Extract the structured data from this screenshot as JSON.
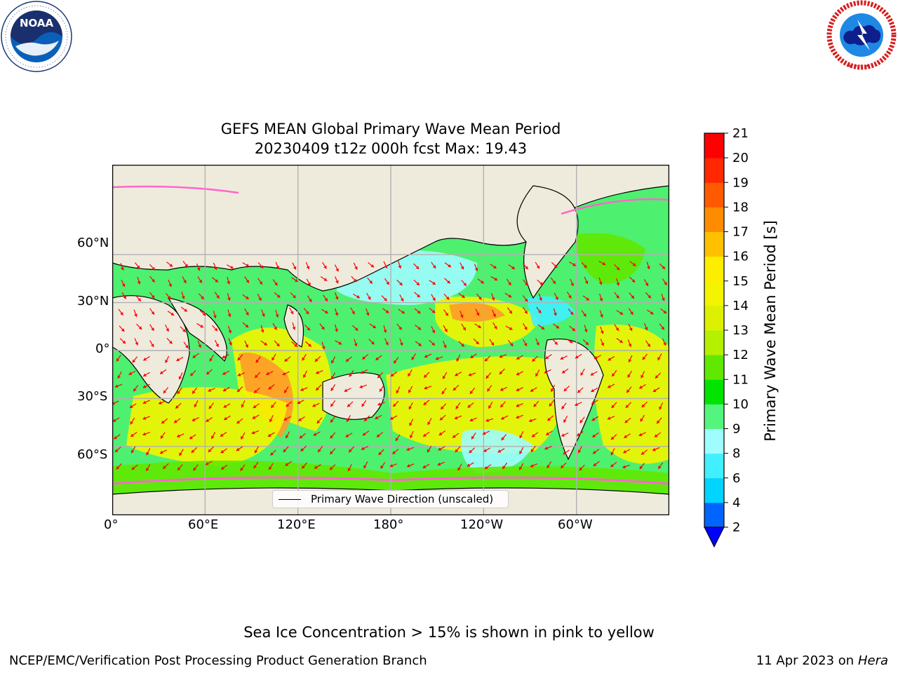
{
  "header": {
    "left_logo": {
      "name": "noaa-logo",
      "text": "NOAA",
      "ring_text": "NATIONAL OCEANIC AND ATMOSPHERIC ADMINISTRATION · U.S. DEPARTMENT OF COMMERCE"
    },
    "right_logo": {
      "name": "nws-logo",
      "ring_text": "NATIONAL WEATHER SERVICE"
    }
  },
  "title": {
    "line1": "GEFS MEAN Global Primary Wave Mean Period",
    "line2": "20230409 t12z 000h fcst   Max: 19.43"
  },
  "map": {
    "projection": "plate-carree",
    "central_longitude": 180,
    "max_value": 19.43,
    "x_ticks": [
      "0°",
      "60°E",
      "120°E",
      "180°",
      "120°W",
      "60°W"
    ],
    "y_ticks": [
      "60°N",
      "30°N",
      "0°",
      "30°S",
      "60°S"
    ],
    "legend_label": "Primary Wave Direction (unscaled)",
    "vector_color": "#ff0000",
    "land_color": "#efebdc",
    "ice_color": "#ff66cc"
  },
  "colorbar": {
    "label": "Primary Wave Mean Period [s]",
    "levels": [
      2,
      4,
      6,
      8,
      9,
      10,
      11,
      12,
      13,
      14,
      15,
      16,
      17,
      18,
      19,
      20,
      21
    ],
    "tick_labels": [
      "2",
      "4",
      "6",
      "8",
      "9",
      "10",
      "11",
      "12",
      "13",
      "14",
      "15",
      "16",
      "17",
      "18",
      "19",
      "20",
      "21"
    ],
    "colors": [
      "#0064ff",
      "#00d4ff",
      "#40f0ff",
      "#9ffcff",
      "#54f57e",
      "#00e400",
      "#60e800",
      "#b4f000",
      "#dcf000",
      "#f4f400",
      "#fdee00",
      "#ffc000",
      "#ff8c00",
      "#ff5a00",
      "#ff2800",
      "#ff0000"
    ],
    "under_color": "#0000ff"
  },
  "footer": {
    "note": "Sea Ice Concentration > 15% is shown in pink to yellow",
    "left": "NCEP/EMC/Verification Post Processing Product Generation Branch",
    "right_date": "11 Apr 2023 on ",
    "right_host": "Hera"
  }
}
